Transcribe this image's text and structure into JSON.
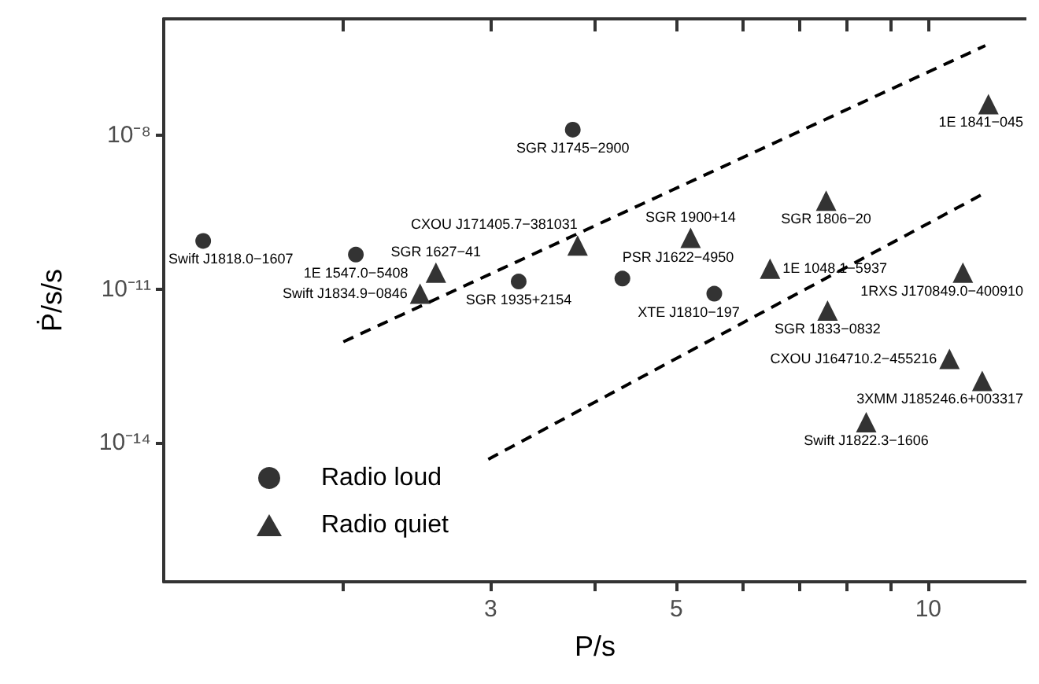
{
  "chart_data": {
    "type": "scatter",
    "xlabel": "P/s",
    "ylabel": "Ṗ/s/s",
    "log": "xy",
    "legend": "bottom left",
    "xlim": [
      1.22,
      13.1
    ],
    "ylim": [
      1.9e-17,
      1.9e-06
    ],
    "xticks": [
      {
        "value": 2,
        "label": null
      },
      3,
      {
        "value": 4,
        "label": null
      },
      5,
      {
        "value": 6,
        "label": null
      },
      {
        "value": 7,
        "label": null
      },
      {
        "value": 8,
        "label": null
      },
      {
        "value": 9,
        "label": null
      },
      10
    ],
    "yticks": [
      {
        "value": 1e-14,
        "label": "10⁻¹⁴"
      },
      {
        "value": 1e-11,
        "label": "10⁻¹¹"
      },
      {
        "value": 1e-08,
        "label": "10⁻⁸"
      }
    ],
    "series": [
      {
        "name": "Radio loud",
        "marker": "circle",
        "color": "#000000",
        "x": [
          1.36,
          2.07,
          3.76,
          3.24,
          4.31,
          5.55
        ],
        "values": [
          8.7e-11,
          4.7e-11,
          1.3e-08,
          1.4e-11,
          1.6e-11,
          8.1e-12
        ]
      },
      {
        "name": "Radio quiet",
        "marker": "triangle",
        "color": "#000000",
        "x": [
          2.58,
          2.47,
          3.81,
          5.2,
          6.47,
          7.55,
          7.58,
          11.8,
          11.0,
          10.6,
          11.6,
          8.43
        ],
        "values": [
          2.1e-11,
          8.1e-12,
          7.1e-11,
          1e-10,
          2.5e-11,
          5.3e-10,
          3.8e-12,
          4.1e-08,
          2.1e-11,
          4.3e-13,
          1.6e-13,
          2.5e-14
        ]
      },
      {
        "type": "line",
        "marker": "none",
        "line_style": "dashed",
        "color": "#000000",
        "x": [
          2.0,
          11.7
        ],
        "values": [
          9.3e-13,
          5.7e-07
        ]
      },
      {
        "type": "line",
        "marker": "none",
        "line_style": "dashed",
        "color": "#000000",
        "x": [
          2.98,
          11.7
        ],
        "values": [
          4.7e-15,
          7.6e-10
        ]
      }
    ],
    "annotations": [
      {
        "text": "Swift J1818.0−1607",
        "x": 1.36,
        "y": 8.7e-11
      },
      {
        "text": "1E 1547.0−5408",
        "x": 2.07,
        "y": 4.7e-11
      },
      {
        "text": "SGR J1745−2900",
        "x": 3.76,
        "y": 1.3e-08
      },
      {
        "text": "SGR 1935+2154",
        "x": 3.24,
        "y": 1.4e-11
      },
      {
        "text": "PSR J1622−4950",
        "x": 4.31,
        "y": 1.6e-11
      },
      {
        "text": "XTE J1810−197",
        "x": 5.55,
        "y": 8.1e-12
      },
      {
        "text": "SGR 1627−41",
        "x": 2.58,
        "y": 2.1e-11
      },
      {
        "text": "Swift J1834.9−0846",
        "x": 2.47,
        "y": 8.1e-12
      },
      {
        "text": "CXOU J171405.7−381031",
        "x": 3.81,
        "y": 7.1e-11
      },
      {
        "text": "SGR 1900+14",
        "x": 5.2,
        "y": 1e-10
      },
      {
        "text": "1E 1048.1−5937",
        "x": 6.47,
        "y": 2.5e-11
      },
      {
        "text": "SGR 1806−20",
        "x": 7.55,
        "y": 5.3e-10
      },
      {
        "text": "SGR 1833−0832",
        "x": 7.58,
        "y": 3.8e-12
      },
      {
        "text": "1E 1841−045",
        "x": 11.8,
        "y": 4.1e-08
      },
      {
        "text": "1RXS J170849.0−400910",
        "x": 11.0,
        "y": 2.1e-11
      },
      {
        "text": "CXOU J164710.2−455216",
        "x": 10.6,
        "y": 4.3e-13
      },
      {
        "text": "3XMM J185246.6+003317",
        "x": 11.6,
        "y": 1.6e-13
      },
      {
        "text": "Swift J1822.3−1606",
        "x": 8.43,
        "y": 2.5e-14
      }
    ]
  }
}
